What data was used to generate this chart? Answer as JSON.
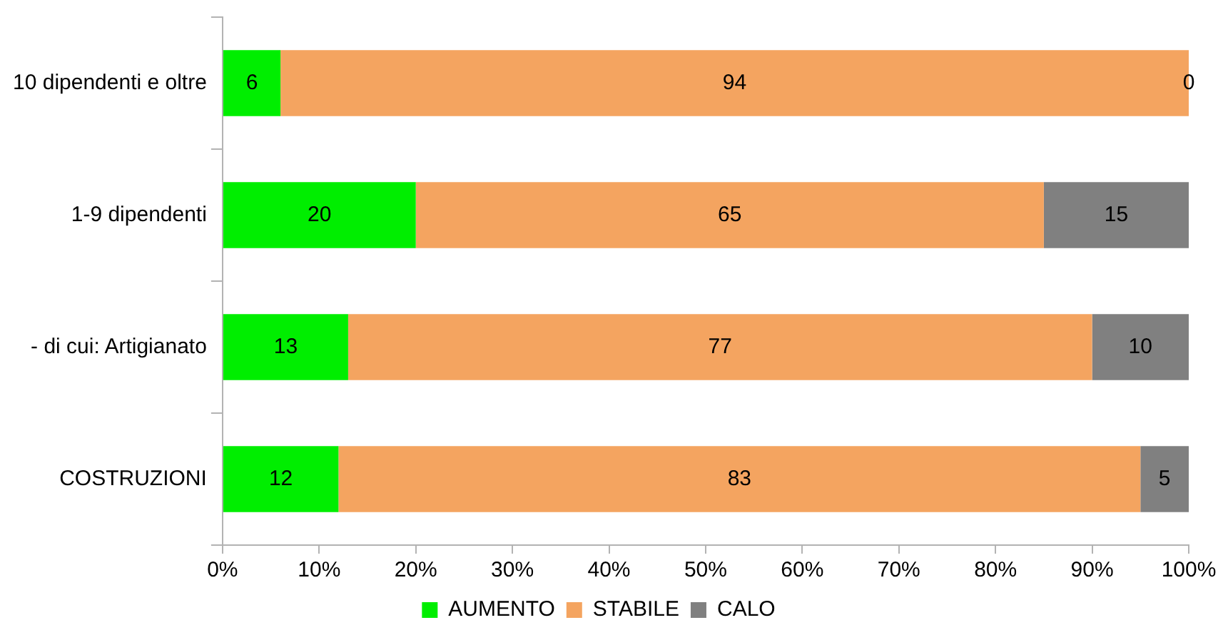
{
  "chart_data": {
    "type": "bar",
    "orientation": "horizontal",
    "stacked": true,
    "categories": [
      "10 dipendenti e oltre",
      "1-9 dipendenti",
      "- di cui: Artigianato",
      "COSTRUZIONI"
    ],
    "series": [
      {
        "name": "AUMENTO",
        "color": "#00ee00",
        "values": [
          6,
          20,
          13,
          12
        ]
      },
      {
        "name": "STABILE",
        "color": "#f4a460",
        "values": [
          94,
          65,
          77,
          83
        ]
      },
      {
        "name": "CALO",
        "color": "#808080",
        "values": [
          0,
          15,
          10,
          5
        ]
      }
    ],
    "xlim": [
      0,
      100
    ],
    "xticks": [
      {
        "value": 0,
        "label": "0%"
      },
      {
        "value": 10,
        "label": "10%"
      },
      {
        "value": 20,
        "label": "20%"
      },
      {
        "value": 30,
        "label": "30%"
      },
      {
        "value": 40,
        "label": "40%"
      },
      {
        "value": 50,
        "label": "50%"
      },
      {
        "value": 60,
        "label": "60%"
      },
      {
        "value": 70,
        "label": "70%"
      },
      {
        "value": 80,
        "label": "80%"
      },
      {
        "value": 90,
        "label": "90%"
      },
      {
        "value": 100,
        "label": "100%"
      }
    ],
    "data_labels": true,
    "grid": false,
    "legend": "bottom"
  }
}
